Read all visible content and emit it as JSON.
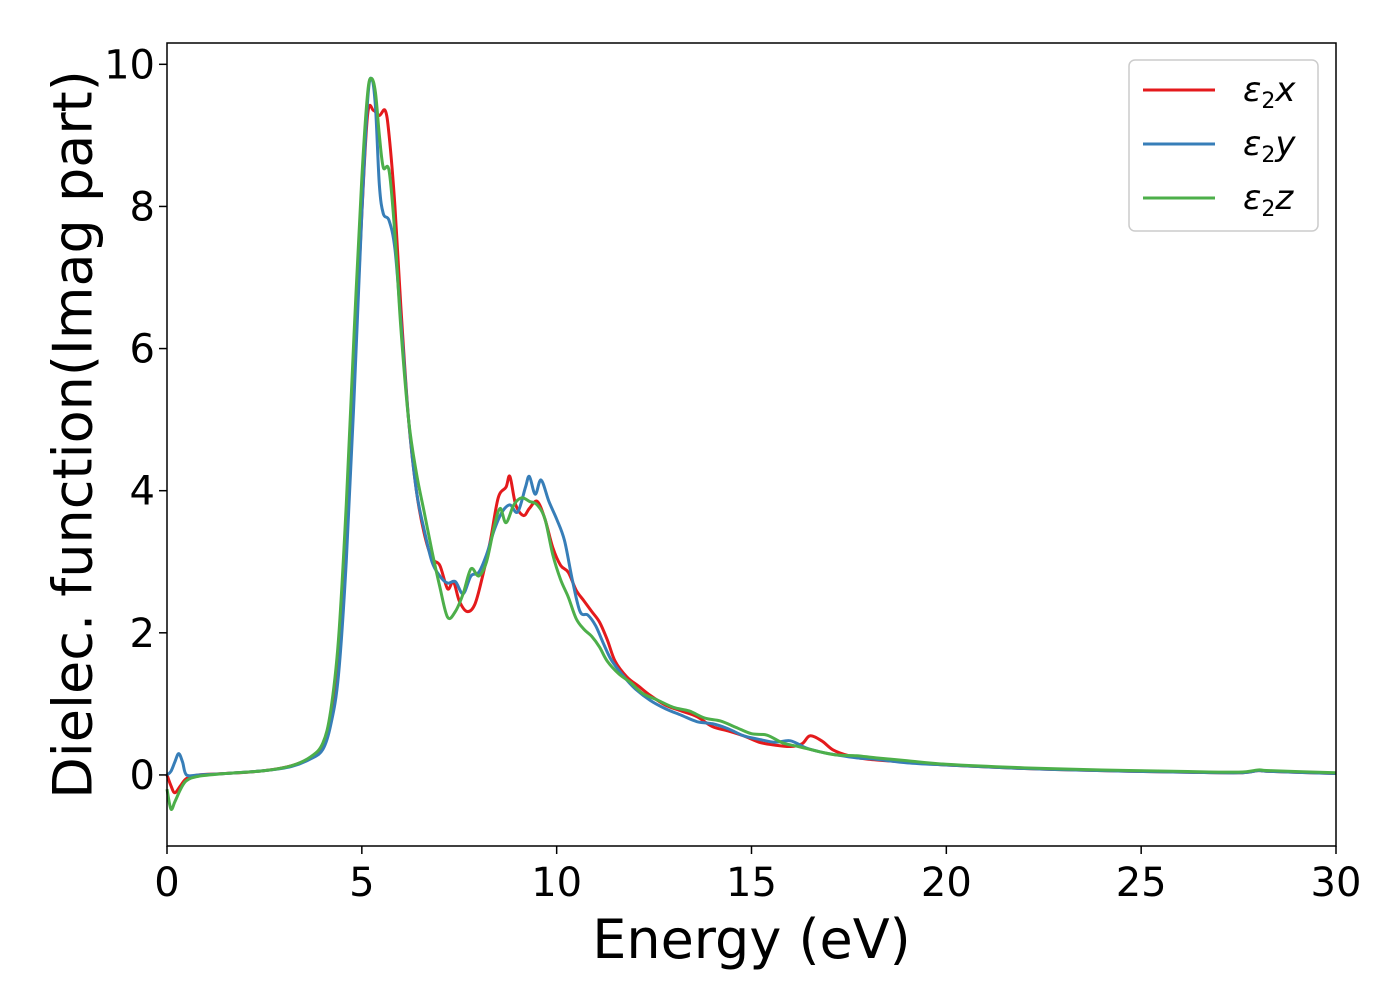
{
  "chart_data": {
    "type": "line",
    "title": "",
    "xlabel": "Energy (eV)",
    "ylabel": "Dielec. function(Imag part)",
    "xlim": [
      0,
      30
    ],
    "ylim": [
      -1,
      10.3
    ],
    "xticks": [
      0,
      5,
      10,
      15,
      20,
      25,
      30
    ],
    "xtick_labels": [
      "0",
      "5",
      "10",
      "15",
      "20",
      "25",
      "30"
    ],
    "yticks": [
      0,
      2,
      4,
      6,
      8,
      10
    ],
    "ytick_labels": [
      "0",
      "2",
      "4",
      "6",
      "8",
      "10"
    ],
    "grid": false,
    "legend_position": "top-right",
    "series": [
      {
        "name": "ε₂x",
        "legend_base": "ε",
        "legend_sub": "2",
        "legend_suffix": "x",
        "color": "#e41a1c",
        "points": [
          [
            0,
            0.0
          ],
          [
            0.1,
            -0.15
          ],
          [
            0.2,
            -0.25
          ],
          [
            0.35,
            -0.15
          ],
          [
            0.5,
            -0.05
          ],
          [
            0.8,
            0.0
          ],
          [
            1.5,
            0.02
          ],
          [
            2.5,
            0.06
          ],
          [
            3.2,
            0.13
          ],
          [
            3.7,
            0.25
          ],
          [
            4.0,
            0.4
          ],
          [
            4.2,
            0.75
          ],
          [
            4.4,
            1.6
          ],
          [
            4.6,
            3.3
          ],
          [
            4.8,
            5.6
          ],
          [
            5.0,
            7.9
          ],
          [
            5.15,
            9.3
          ],
          [
            5.3,
            9.35
          ],
          [
            5.45,
            9.28
          ],
          [
            5.6,
            9.35
          ],
          [
            5.7,
            9.0
          ],
          [
            5.85,
            8.0
          ],
          [
            6.0,
            6.6
          ],
          [
            6.2,
            5.0
          ],
          [
            6.4,
            4.0
          ],
          [
            6.6,
            3.4
          ],
          [
            6.8,
            3.05
          ],
          [
            7.0,
            2.95
          ],
          [
            7.2,
            2.62
          ],
          [
            7.35,
            2.72
          ],
          [
            7.5,
            2.45
          ],
          [
            7.7,
            2.3
          ],
          [
            7.9,
            2.4
          ],
          [
            8.1,
            2.8
          ],
          [
            8.3,
            3.3
          ],
          [
            8.5,
            3.9
          ],
          [
            8.7,
            4.05
          ],
          [
            8.8,
            4.2
          ],
          [
            8.95,
            3.8
          ],
          [
            9.15,
            3.65
          ],
          [
            9.3,
            3.75
          ],
          [
            9.5,
            3.85
          ],
          [
            9.7,
            3.6
          ],
          [
            9.9,
            3.2
          ],
          [
            10.1,
            2.95
          ],
          [
            10.3,
            2.85
          ],
          [
            10.5,
            2.6
          ],
          [
            10.7,
            2.45
          ],
          [
            10.9,
            2.3
          ],
          [
            11.1,
            2.15
          ],
          [
            11.3,
            1.9
          ],
          [
            11.5,
            1.6
          ],
          [
            11.8,
            1.38
          ],
          [
            12.1,
            1.25
          ],
          [
            12.4,
            1.12
          ],
          [
            12.8,
            0.98
          ],
          [
            13.2,
            0.9
          ],
          [
            13.6,
            0.82
          ],
          [
            14.0,
            0.68
          ],
          [
            14.4,
            0.62
          ],
          [
            14.8,
            0.55
          ],
          [
            15.2,
            0.46
          ],
          [
            15.6,
            0.42
          ],
          [
            16.0,
            0.4
          ],
          [
            16.3,
            0.44
          ],
          [
            16.5,
            0.55
          ],
          [
            16.8,
            0.48
          ],
          [
            17.1,
            0.35
          ],
          [
            17.5,
            0.27
          ],
          [
            18.0,
            0.22
          ],
          [
            19.0,
            0.18
          ],
          [
            20.0,
            0.14
          ],
          [
            22.0,
            0.09
          ],
          [
            24.0,
            0.06
          ],
          [
            26.0,
            0.04
          ],
          [
            27.5,
            0.03
          ],
          [
            28.0,
            0.06
          ],
          [
            28.3,
            0.05
          ],
          [
            30.0,
            0.02
          ]
        ]
      },
      {
        "name": "ε₂y",
        "legend_base": "ε",
        "legend_sub": "2",
        "legend_suffix": "y",
        "color": "#377eb8",
        "points": [
          [
            0,
            0.0
          ],
          [
            0.1,
            0.05
          ],
          [
            0.2,
            0.18
          ],
          [
            0.3,
            0.3
          ],
          [
            0.4,
            0.18
          ],
          [
            0.5,
            0.0
          ],
          [
            0.8,
            0.0
          ],
          [
            1.5,
            0.02
          ],
          [
            2.5,
            0.06
          ],
          [
            3.2,
            0.12
          ],
          [
            3.7,
            0.23
          ],
          [
            4.0,
            0.36
          ],
          [
            4.2,
            0.7
          ],
          [
            4.4,
            1.4
          ],
          [
            4.6,
            3.0
          ],
          [
            4.8,
            5.3
          ],
          [
            5.0,
            7.9
          ],
          [
            5.15,
            9.5
          ],
          [
            5.25,
            9.8
          ],
          [
            5.35,
            9.4
          ],
          [
            5.45,
            8.3
          ],
          [
            5.55,
            7.9
          ],
          [
            5.7,
            7.8
          ],
          [
            5.85,
            7.4
          ],
          [
            6.0,
            6.4
          ],
          [
            6.2,
            5.0
          ],
          [
            6.4,
            4.0
          ],
          [
            6.6,
            3.45
          ],
          [
            6.8,
            3.0
          ],
          [
            7.0,
            2.8
          ],
          [
            7.2,
            2.7
          ],
          [
            7.4,
            2.72
          ],
          [
            7.6,
            2.55
          ],
          [
            7.8,
            2.8
          ],
          [
            8.0,
            2.85
          ],
          [
            8.2,
            3.1
          ],
          [
            8.4,
            3.45
          ],
          [
            8.6,
            3.7
          ],
          [
            8.8,
            3.8
          ],
          [
            9.0,
            3.7
          ],
          [
            9.2,
            4.05
          ],
          [
            9.3,
            4.2
          ],
          [
            9.45,
            3.95
          ],
          [
            9.6,
            4.15
          ],
          [
            9.8,
            3.85
          ],
          [
            10.0,
            3.6
          ],
          [
            10.2,
            3.3
          ],
          [
            10.4,
            2.75
          ],
          [
            10.6,
            2.3
          ],
          [
            10.8,
            2.25
          ],
          [
            11.0,
            2.1
          ],
          [
            11.2,
            1.85
          ],
          [
            11.4,
            1.62
          ],
          [
            11.7,
            1.4
          ],
          [
            12.0,
            1.22
          ],
          [
            12.4,
            1.05
          ],
          [
            12.8,
            0.93
          ],
          [
            13.2,
            0.84
          ],
          [
            13.6,
            0.75
          ],
          [
            14.0,
            0.72
          ],
          [
            14.4,
            0.65
          ],
          [
            14.8,
            0.55
          ],
          [
            15.2,
            0.5
          ],
          [
            15.6,
            0.46
          ],
          [
            16.0,
            0.48
          ],
          [
            16.4,
            0.38
          ],
          [
            16.8,
            0.32
          ],
          [
            17.2,
            0.28
          ],
          [
            17.7,
            0.24
          ],
          [
            18.2,
            0.22
          ],
          [
            19.0,
            0.17
          ],
          [
            20.0,
            0.14
          ],
          [
            22.0,
            0.09
          ],
          [
            24.0,
            0.06
          ],
          [
            26.0,
            0.04
          ],
          [
            27.5,
            0.03
          ],
          [
            28.0,
            0.06
          ],
          [
            28.3,
            0.05
          ],
          [
            30.0,
            0.02
          ]
        ]
      },
      {
        "name": "ε₂z",
        "legend_base": "ε",
        "legend_sub": "2",
        "legend_suffix": "z",
        "color": "#4daf4a",
        "points": [
          [
            0,
            -0.2
          ],
          [
            0.1,
            -0.48
          ],
          [
            0.2,
            -0.38
          ],
          [
            0.35,
            -0.2
          ],
          [
            0.5,
            -0.08
          ],
          [
            0.8,
            -0.02
          ],
          [
            1.5,
            0.02
          ],
          [
            2.5,
            0.06
          ],
          [
            3.2,
            0.13
          ],
          [
            3.7,
            0.26
          ],
          [
            4.0,
            0.45
          ],
          [
            4.2,
            0.9
          ],
          [
            4.4,
            1.9
          ],
          [
            4.6,
            3.8
          ],
          [
            4.8,
            6.2
          ],
          [
            5.0,
            8.4
          ],
          [
            5.15,
            9.6
          ],
          [
            5.25,
            9.8
          ],
          [
            5.35,
            9.6
          ],
          [
            5.45,
            9.0
          ],
          [
            5.55,
            8.55
          ],
          [
            5.7,
            8.5
          ],
          [
            5.85,
            7.6
          ],
          [
            6.0,
            6.3
          ],
          [
            6.2,
            5.0
          ],
          [
            6.4,
            4.25
          ],
          [
            6.6,
            3.7
          ],
          [
            6.8,
            3.15
          ],
          [
            7.0,
            2.65
          ],
          [
            7.2,
            2.22
          ],
          [
            7.4,
            2.3
          ],
          [
            7.6,
            2.55
          ],
          [
            7.8,
            2.9
          ],
          [
            8.0,
            2.8
          ],
          [
            8.2,
            3.0
          ],
          [
            8.4,
            3.5
          ],
          [
            8.55,
            3.75
          ],
          [
            8.7,
            3.55
          ],
          [
            8.9,
            3.8
          ],
          [
            9.1,
            3.9
          ],
          [
            9.3,
            3.85
          ],
          [
            9.5,
            3.8
          ],
          [
            9.7,
            3.6
          ],
          [
            9.9,
            3.1
          ],
          [
            10.1,
            2.75
          ],
          [
            10.3,
            2.5
          ],
          [
            10.5,
            2.2
          ],
          [
            10.7,
            2.05
          ],
          [
            10.9,
            1.95
          ],
          [
            11.1,
            1.8
          ],
          [
            11.3,
            1.6
          ],
          [
            11.6,
            1.42
          ],
          [
            11.9,
            1.3
          ],
          [
            12.2,
            1.15
          ],
          [
            12.6,
            1.05
          ],
          [
            13.0,
            0.95
          ],
          [
            13.4,
            0.9
          ],
          [
            13.8,
            0.8
          ],
          [
            14.2,
            0.76
          ],
          [
            14.6,
            0.67
          ],
          [
            15.0,
            0.58
          ],
          [
            15.4,
            0.56
          ],
          [
            15.8,
            0.45
          ],
          [
            16.2,
            0.4
          ],
          [
            16.8,
            0.32
          ],
          [
            17.2,
            0.28
          ],
          [
            17.7,
            0.27
          ],
          [
            18.2,
            0.24
          ],
          [
            19.0,
            0.2
          ],
          [
            20.0,
            0.15
          ],
          [
            22.0,
            0.1
          ],
          [
            24.0,
            0.07
          ],
          [
            26.0,
            0.05
          ],
          [
            27.5,
            0.04
          ],
          [
            28.0,
            0.07
          ],
          [
            28.3,
            0.06
          ],
          [
            30.0,
            0.03
          ]
        ]
      }
    ]
  }
}
